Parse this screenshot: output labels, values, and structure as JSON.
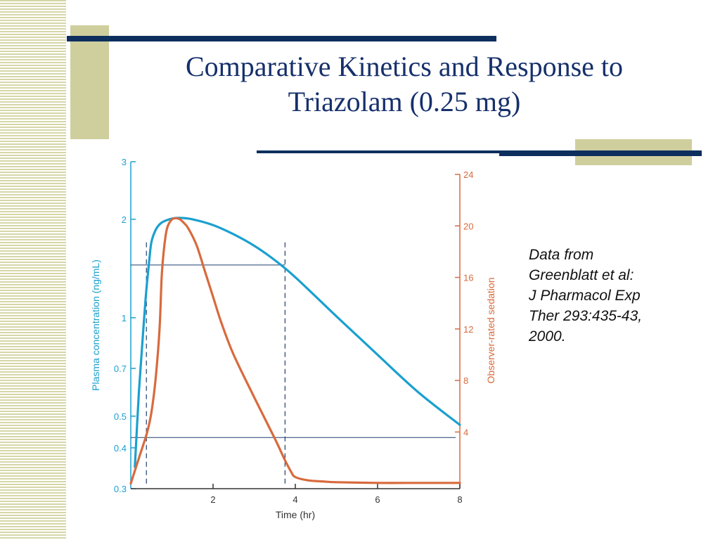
{
  "slide": {
    "title_line1": "Comparative Kinetics and Response to",
    "title_line2": "Triazolam (0.25 mg)",
    "source_lines": [
      "Data from",
      "Greenblatt et al:",
      "J Pharmacol Exp",
      "Ther 293:435-43,",
      "2000."
    ],
    "colors": {
      "title": "#16306b",
      "accent_bar": "#0d2f5e",
      "accent_block": "#cfcf9e"
    }
  },
  "chart_data": {
    "type": "line",
    "xlabel": "Time (hr)",
    "x_ticks": [
      "2",
      "4",
      "6",
      "8"
    ],
    "xlim": [
      0,
      8
    ],
    "y_left": {
      "label": "Plasma concentration (ng/mL)",
      "scale": "log",
      "ticks": [
        "0.3",
        "0.4",
        "0.5",
        "0.7",
        "1",
        "2",
        "3"
      ],
      "lim": [
        0.3,
        3
      ],
      "color": "#1aa0cf"
    },
    "y_right": {
      "label": "Observer-rated sedation",
      "scale": "linear",
      "ticks": [
        "4",
        "8",
        "12",
        "16",
        "20",
        "24"
      ],
      "lim": [
        -0.4,
        24
      ],
      "color": "#d86a3d"
    },
    "series": [
      {
        "axis": "left",
        "color": "#1aa0cf",
        "x": [
          0.1,
          0.2,
          0.3,
          0.35,
          0.4,
          0.45,
          0.5,
          0.6,
          0.7,
          0.8,
          1.0,
          1.2,
          1.5,
          2.0,
          2.5,
          3.0,
          3.5,
          4.0,
          5.0,
          6.0,
          7.0,
          8.0
        ],
        "y": [
          0.35,
          0.6,
          0.9,
          1.1,
          1.3,
          1.5,
          1.7,
          1.85,
          1.93,
          1.97,
          2.01,
          2.02,
          2.0,
          1.92,
          1.8,
          1.66,
          1.5,
          1.33,
          1.01,
          0.77,
          0.59,
          0.47
        ]
      },
      {
        "axis": "right",
        "color": "#d86a3d",
        "x": [
          0,
          0.2,
          0.4,
          0.5,
          0.6,
          0.7,
          0.75,
          0.8,
          0.85,
          0.9,
          1.0,
          1.1,
          1.2,
          1.3,
          1.4,
          1.6,
          1.8,
          2.0,
          2.2,
          2.5,
          3.0,
          3.5,
          3.75,
          3.9,
          4.0,
          4.3,
          4.7,
          5.0,
          6.0,
          7.0,
          8.0
        ],
        "y": [
          0,
          2,
          4,
          5.5,
          8,
          12,
          16,
          18,
          19.3,
          20,
          20.5,
          20.6,
          20.5,
          20.2,
          19.8,
          18.5,
          16.5,
          14.5,
          12.5,
          10,
          6.7,
          3.5,
          1.8,
          0.9,
          0.5,
          0.25,
          0.15,
          0.1,
          0.05,
          0.05,
          0.05
        ]
      }
    ],
    "reference_lines": {
      "horizontal_left_axis": [
        1.45,
        0.43
      ],
      "vertical_x": [
        0.38,
        3.75
      ]
    }
  }
}
